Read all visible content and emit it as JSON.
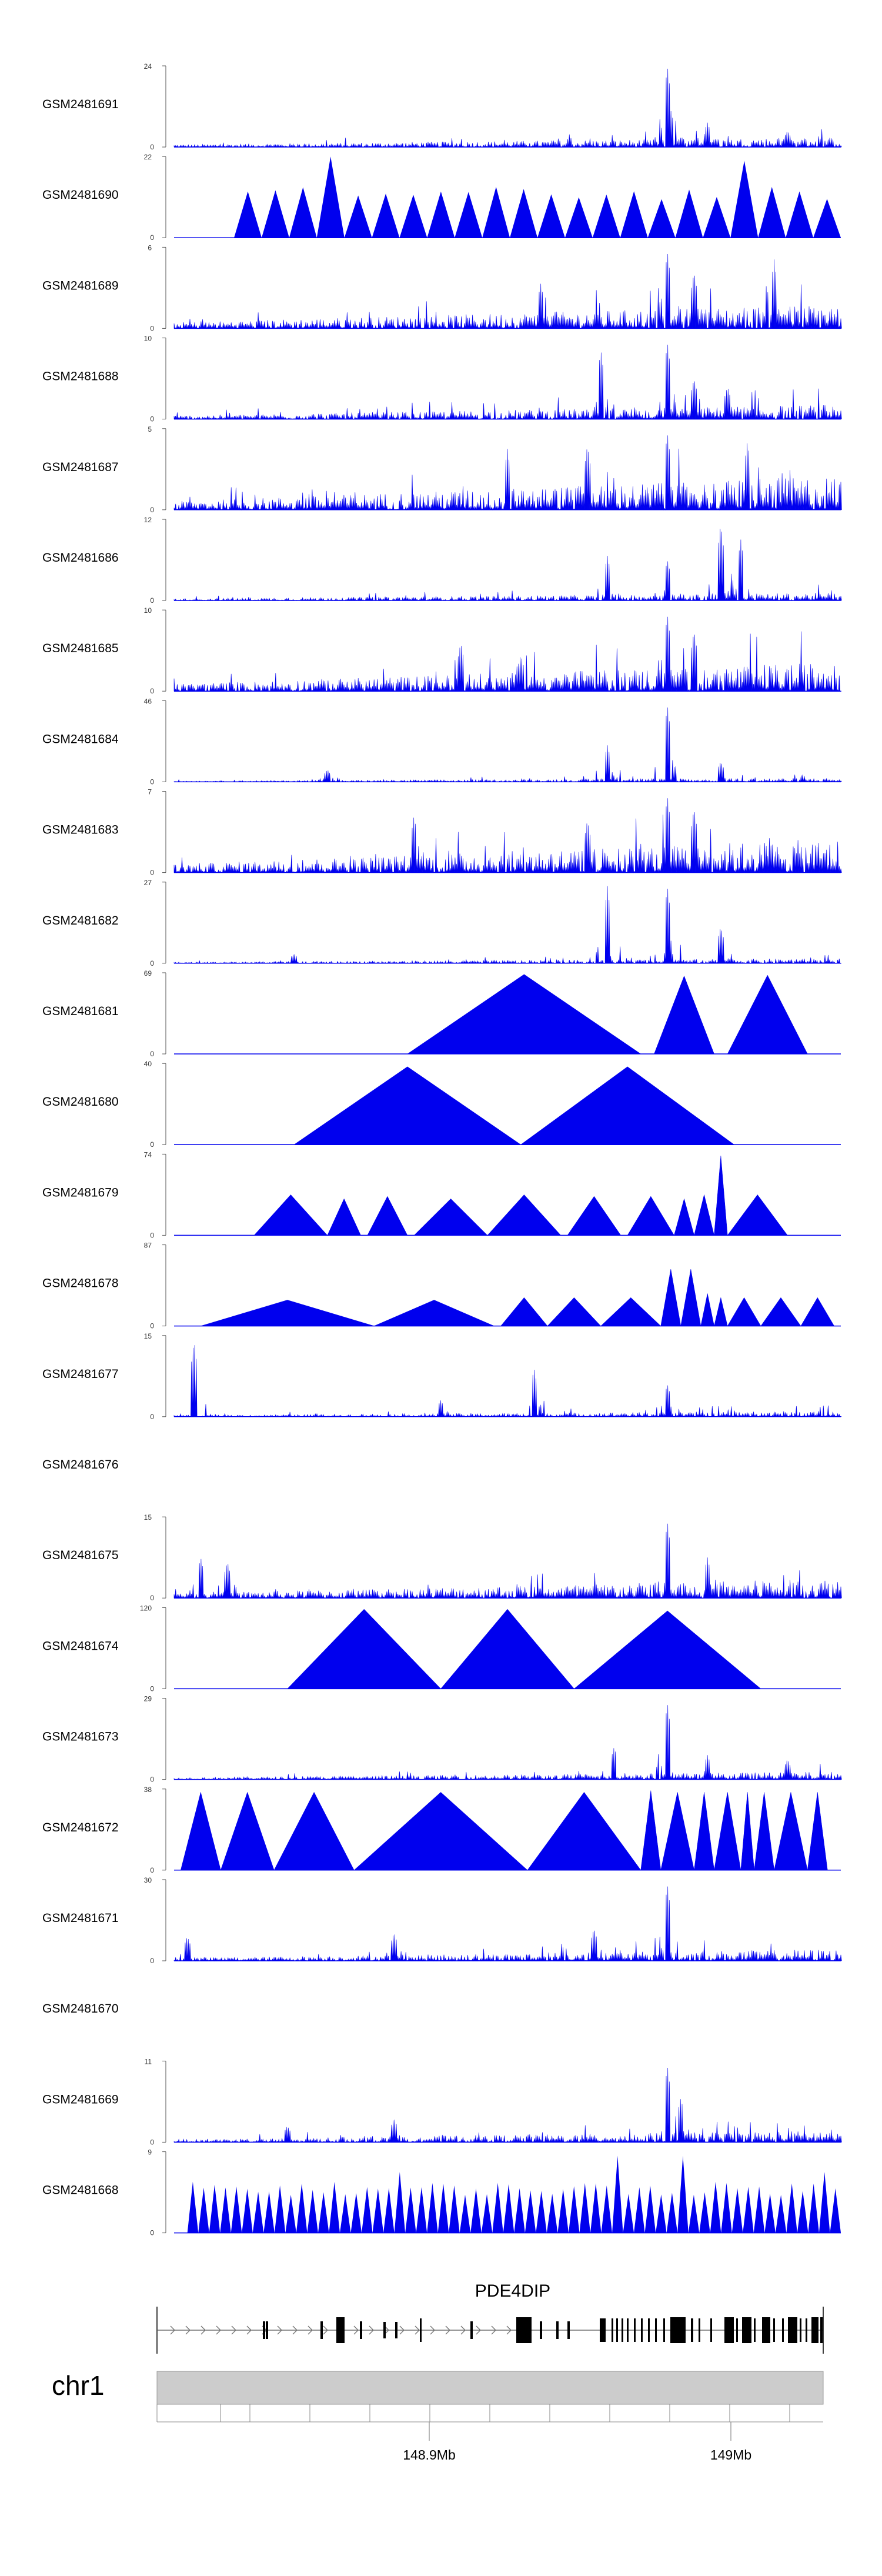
{
  "chart_data": {
    "type": "area",
    "title": "",
    "genome_build_chromosome": "chr1",
    "x_ticks": [
      "148.9Mb",
      "149Mb"
    ],
    "gene": {
      "name": "PDE4DIP",
      "strand": "+"
    },
    "series_color": "#0000ee",
    "tracks": [
      {
        "name": "GSM2481691",
        "ymax": 24,
        "ymin": 0,
        "style": "dense",
        "peaks": [
          [
            0.74,
            1.0
          ],
          [
            0.745,
            0.45
          ],
          [
            0.8,
            0.3
          ],
          [
            0.92,
            0.2
          ]
        ],
        "base": 0.1
      },
      {
        "name": "GSM2481690",
        "ymax": 22,
        "ymin": 0,
        "style": "sparse",
        "start": 0.09,
        "end": 1.0,
        "count": 22,
        "spikes": [
          [
            0.23,
            1.0
          ],
          [
            0.87,
            0.95
          ]
        ],
        "height": 0.55
      },
      {
        "name": "GSM2481689",
        "ymax": 6,
        "ymin": 0,
        "style": "dense",
        "peaks": [
          [
            0.74,
            0.95
          ],
          [
            0.78,
            0.7
          ],
          [
            0.9,
            0.85
          ],
          [
            0.55,
            0.55
          ]
        ],
        "base": 0.25
      },
      {
        "name": "GSM2481688",
        "ymax": 10,
        "ymin": 0,
        "style": "dense",
        "peaks": [
          [
            0.64,
            0.85
          ],
          [
            0.74,
            0.95
          ],
          [
            0.78,
            0.5
          ],
          [
            0.83,
            0.4
          ]
        ],
        "base": 0.15
      },
      {
        "name": "GSM2481687",
        "ymax": 5,
        "ymin": 0,
        "style": "dense",
        "peaks": [
          [
            0.74,
            0.95
          ],
          [
            0.86,
            0.85
          ],
          [
            0.62,
            0.8
          ],
          [
            0.5,
            0.75
          ]
        ],
        "base": 0.35
      },
      {
        "name": "GSM2481686",
        "ymax": 12,
        "ymin": 0,
        "style": "dense",
        "peaks": [
          [
            0.82,
            0.95
          ],
          [
            0.85,
            0.75
          ],
          [
            0.65,
            0.55
          ],
          [
            0.74,
            0.5
          ]
        ],
        "base": 0.08
      },
      {
        "name": "GSM2481685",
        "ymax": 10,
        "ymin": 0,
        "style": "dense",
        "peaks": [
          [
            0.74,
            0.95
          ],
          [
            0.43,
            0.6
          ],
          [
            0.78,
            0.75
          ],
          [
            0.52,
            0.45
          ]
        ],
        "base": 0.3
      },
      {
        "name": "GSM2481684",
        "ymax": 46,
        "ymin": 0,
        "style": "dense",
        "peaks": [
          [
            0.74,
            0.95
          ],
          [
            0.65,
            0.45
          ],
          [
            0.82,
            0.25
          ],
          [
            0.23,
            0.15
          ]
        ],
        "base": 0.04
      },
      {
        "name": "GSM2481683",
        "ymax": 7,
        "ymin": 0,
        "style": "dense",
        "peaks": [
          [
            0.74,
            0.95
          ],
          [
            0.36,
            0.7
          ],
          [
            0.62,
            0.65
          ],
          [
            0.78,
            0.8
          ]
        ],
        "base": 0.35
      },
      {
        "name": "GSM2481682",
        "ymax": 27,
        "ymin": 0,
        "style": "dense",
        "peaks": [
          [
            0.74,
            0.95
          ],
          [
            0.65,
            0.95
          ],
          [
            0.82,
            0.45
          ],
          [
            0.18,
            0.12
          ]
        ],
        "base": 0.05
      },
      {
        "name": "GSM2481681",
        "ymax": 69,
        "ymin": 0,
        "style": "triangles",
        "tri": [
          [
            0.35,
            0.7,
            0.98
          ],
          [
            0.72,
            0.81,
            0.96
          ],
          [
            0.83,
            0.95,
            0.97
          ]
        ]
      },
      {
        "name": "GSM2481680",
        "ymax": 40,
        "ymin": 0,
        "style": "triangles",
        "tri": [
          [
            0.18,
            0.52,
            0.96
          ],
          [
            0.52,
            0.84,
            0.96
          ]
        ]
      },
      {
        "name": "GSM2481679",
        "ymax": 74,
        "ymin": 0,
        "style": "triangles",
        "tri": [
          [
            0.12,
            0.23,
            0.5
          ],
          [
            0.23,
            0.28,
            0.45
          ],
          [
            0.29,
            0.35,
            0.48
          ],
          [
            0.36,
            0.47,
            0.45
          ],
          [
            0.47,
            0.58,
            0.5
          ],
          [
            0.59,
            0.67,
            0.48
          ],
          [
            0.68,
            0.75,
            0.48
          ],
          [
            0.75,
            0.78,
            0.45
          ],
          [
            0.78,
            0.81,
            0.5
          ],
          [
            0.81,
            0.83,
            0.98
          ],
          [
            0.83,
            0.92,
            0.5
          ]
        ]
      },
      {
        "name": "GSM2481678",
        "ymax": 87,
        "ymin": 0,
        "style": "triangles",
        "tri": [
          [
            0.04,
            0.3,
            0.32
          ],
          [
            0.3,
            0.48,
            0.32
          ],
          [
            0.49,
            0.56,
            0.35
          ],
          [
            0.56,
            0.64,
            0.35
          ],
          [
            0.64,
            0.73,
            0.35
          ],
          [
            0.73,
            0.76,
            0.7
          ],
          [
            0.76,
            0.79,
            0.7
          ],
          [
            0.79,
            0.81,
            0.4
          ],
          [
            0.81,
            0.83,
            0.35
          ],
          [
            0.83,
            0.88,
            0.35
          ],
          [
            0.88,
            0.94,
            0.35
          ],
          [
            0.94,
            0.99,
            0.35
          ]
        ]
      },
      {
        "name": "GSM2481677",
        "ymax": 15,
        "ymin": 0,
        "style": "dense",
        "peaks": [
          [
            0.03,
            0.95
          ],
          [
            0.54,
            0.6
          ],
          [
            0.74,
            0.4
          ],
          [
            0.4,
            0.2
          ]
        ],
        "base": 0.06
      },
      {
        "name": "GSM2481676",
        "ymax": null,
        "ymin": null,
        "style": "empty"
      },
      {
        "name": "GSM2481675",
        "ymax": 15,
        "ymin": 0,
        "style": "dense",
        "peaks": [
          [
            0.74,
            0.95
          ],
          [
            0.8,
            0.5
          ],
          [
            0.04,
            0.5
          ],
          [
            0.08,
            0.45
          ]
        ],
        "base": 0.2
      },
      {
        "name": "GSM2481674",
        "ymax": 120,
        "ymin": 0,
        "style": "triangles",
        "tri": [
          [
            0.17,
            0.4,
            0.98
          ],
          [
            0.4,
            0.6,
            0.98
          ],
          [
            0.6,
            0.88,
            0.96
          ]
        ]
      },
      {
        "name": "GSM2481673",
        "ymax": 29,
        "ymin": 0,
        "style": "dense",
        "peaks": [
          [
            0.74,
            0.95
          ],
          [
            0.66,
            0.4
          ],
          [
            0.8,
            0.3
          ],
          [
            0.92,
            0.25
          ]
        ],
        "base": 0.08
      },
      {
        "name": "GSM2481672",
        "ymax": 38,
        "ymin": 0,
        "style": "triangles",
        "tri": [
          [
            0.01,
            0.07,
            0.96
          ],
          [
            0.07,
            0.15,
            0.96
          ],
          [
            0.15,
            0.27,
            0.96
          ],
          [
            0.27,
            0.53,
            0.96
          ],
          [
            0.53,
            0.7,
            0.96
          ],
          [
            0.7,
            0.73,
            0.98
          ],
          [
            0.73,
            0.78,
            0.96
          ],
          [
            0.78,
            0.81,
            0.96
          ],
          [
            0.81,
            0.85,
            0.96
          ],
          [
            0.85,
            0.87,
            0.96
          ],
          [
            0.87,
            0.9,
            0.96
          ],
          [
            0.9,
            0.95,
            0.96
          ],
          [
            0.95,
            0.98,
            0.96
          ]
        ]
      },
      {
        "name": "GSM2481671",
        "ymax": 30,
        "ymin": 0,
        "style": "dense",
        "peaks": [
          [
            0.74,
            0.95
          ],
          [
            0.33,
            0.35
          ],
          [
            0.63,
            0.4
          ],
          [
            0.02,
            0.3
          ]
        ],
        "base": 0.12
      },
      {
        "name": "GSM2481670",
        "ymax": null,
        "ymin": null,
        "style": "empty"
      },
      {
        "name": "GSM2481669",
        "ymax": 11,
        "ymin": 0,
        "style": "dense",
        "peaks": [
          [
            0.74,
            0.95
          ],
          [
            0.76,
            0.55
          ],
          [
            0.33,
            0.3
          ],
          [
            0.17,
            0.2
          ]
        ],
        "base": 0.12
      },
      {
        "name": "GSM2481668",
        "ymax": 9,
        "ymin": 0,
        "style": "sparse",
        "start": 0.02,
        "end": 1.0,
        "count": 60,
        "spikes": [
          [
            0.34,
            0.75
          ],
          [
            0.67,
            0.95
          ],
          [
            0.76,
            0.95
          ],
          [
            0.97,
            0.75
          ]
        ],
        "height": 0.55
      }
    ]
  }
}
